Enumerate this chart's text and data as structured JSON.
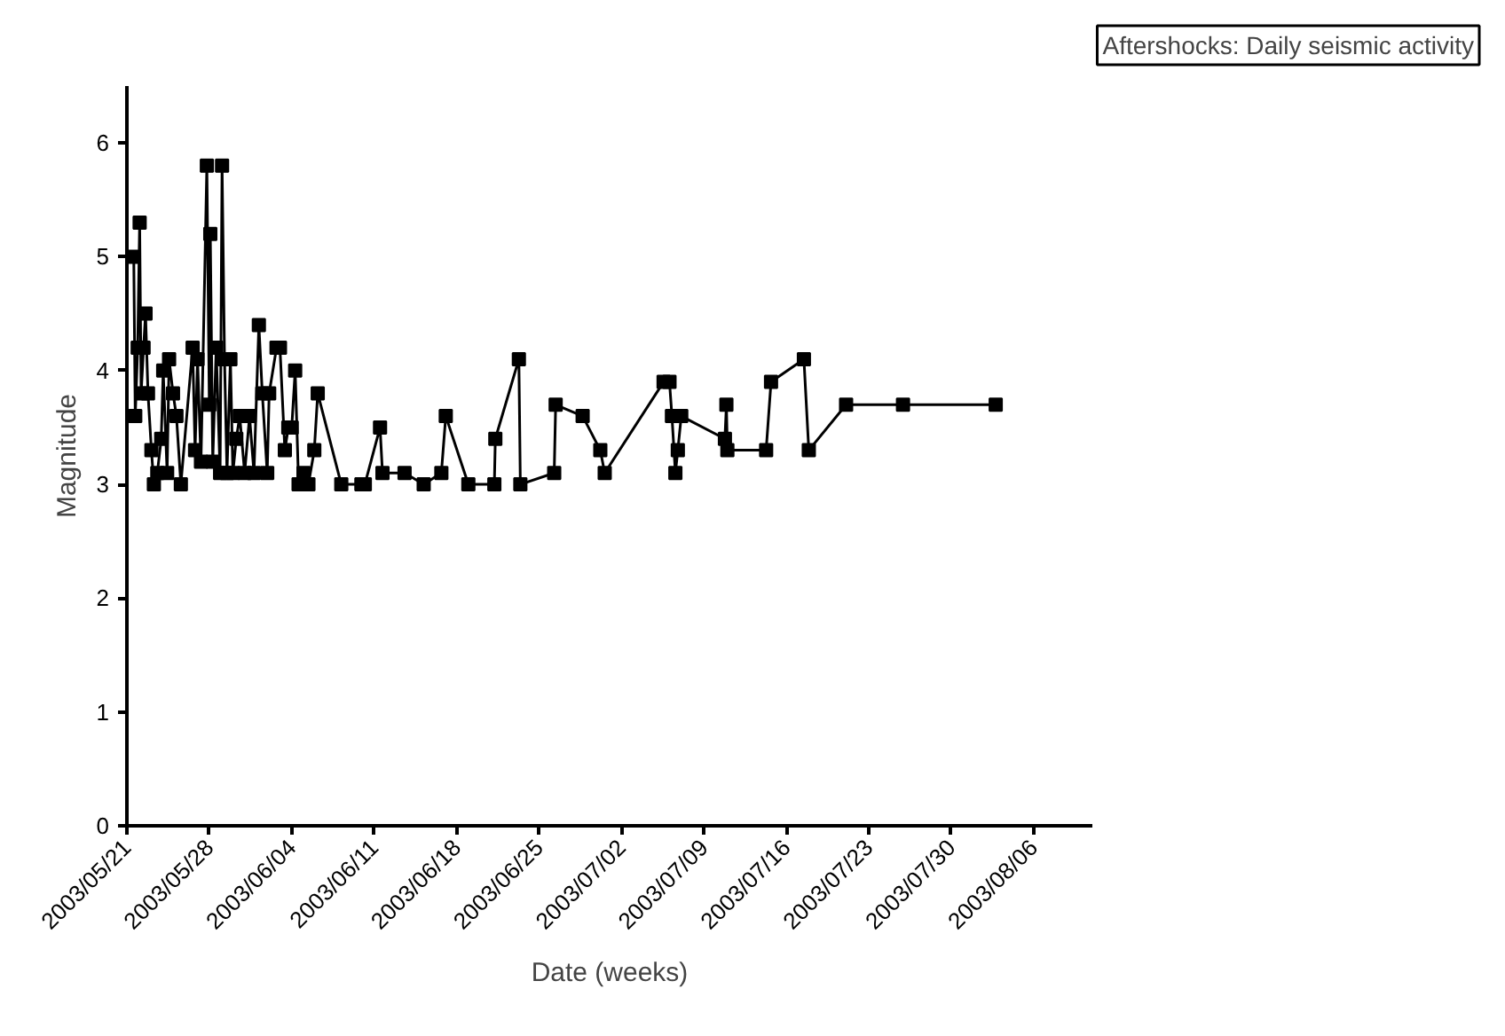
{
  "chart_data": {
    "type": "line",
    "title": "Aftershocks: Daily seismic activity",
    "xlabel": "Date (weeks)",
    "ylabel": "Magnitude",
    "x": [
      "2003-05-21T14:00",
      "2003-05-21T17:00",
      "2003-05-21T22:00",
      "2003-05-22T02:00",
      "2003-05-22T05:00",
      "2003-05-22T10:00",
      "2003-05-22T14:00",
      "2003-05-22T19:00",
      "2003-05-23T02:00",
      "2003-05-23T07:00",
      "2003-05-23T14:00",
      "2003-05-23T22:00",
      "2003-05-24T02:00",
      "2003-05-24T10:00",
      "2003-05-24T14:00",
      "2003-05-24T22:00",
      "2003-05-25T05:00",
      "2003-05-25T14:00",
      "2003-05-26T14:00",
      "2003-05-26T19:00",
      "2003-05-27T00:00",
      "2003-05-27T07:00",
      "2003-05-27T19:00",
      "2003-05-28T00:00",
      "2003-05-28T02:00",
      "2003-05-28T07:00",
      "2003-05-28T14:00",
      "2003-05-28T22:00",
      "2003-05-29T02:00",
      "2003-05-29T07:00",
      "2003-05-29T12:00",
      "2003-05-29T19:00",
      "2003-05-30T00:00",
      "2003-05-30T07:00",
      "2003-05-30T14:00",
      "2003-05-31T00:00",
      "2003-05-31T10:00",
      "2003-05-31T19:00",
      "2003-06-01T05:00",
      "2003-06-01T12:00",
      "2003-06-01T22:00",
      "2003-06-02T02:00",
      "2003-06-02T17:00",
      "2003-06-03T00:00",
      "2003-06-03T10:00",
      "2003-06-03T17:00",
      "2003-06-04T00:00",
      "2003-06-04T07:00",
      "2003-06-04T14:00",
      "2003-06-05T00:00",
      "2003-06-05T10:00",
      "2003-06-05T22:00",
      "2003-06-06T05:00",
      "2003-06-08T05:00",
      "2003-06-09T22:00",
      "2003-06-10T05:00",
      "2003-06-11T12:00",
      "2003-06-11T17:00",
      "2003-06-13T14:00",
      "2003-06-15T05:00",
      "2003-06-16T17:00",
      "2003-06-17T02:00",
      "2003-06-19T00:00",
      "2003-06-21T05:00",
      "2003-06-21T07:00",
      "2003-06-23T07:00",
      "2003-06-23T10:00",
      "2003-06-26T07:00",
      "2003-06-26T10:00",
      "2003-06-28T17:00",
      "2003-06-30T05:00",
      "2003-06-30T14:00",
      "2003-07-05T14:00",
      "2003-07-06T02:00",
      "2003-07-06T07:00",
      "2003-07-06T14:00",
      "2003-07-06T19:00",
      "2003-07-07T02:00",
      "2003-07-10T19:00",
      "2003-07-10T22:00",
      "2003-07-11T00:00",
      "2003-07-14T07:00",
      "2003-07-14T17:00",
      "2003-07-17T12:00",
      "2003-07-17T22:00",
      "2003-07-21T02:00",
      "2003-07-25T22:00",
      "2003-08-02T19:00"
    ],
    "series": [
      {
        "color": "#000000",
        "values": [
          5.0,
          3.6,
          4.2,
          5.3,
          3.8,
          4.2,
          4.5,
          3.8,
          3.3,
          3.0,
          3.1,
          3.4,
          4.0,
          3.1,
          4.1,
          3.8,
          3.6,
          3.0,
          4.2,
          3.3,
          4.1,
          3.2,
          5.8,
          3.7,
          5.2,
          3.2,
          4.2,
          3.1,
          5.8,
          4.1,
          3.1,
          4.1,
          3.1,
          3.4,
          3.6,
          3.1,
          3.6,
          3.1,
          4.4,
          3.8,
          3.1,
          3.8,
          4.2,
          4.2,
          3.3,
          3.5,
          3.5,
          4.0,
          3.0,
          3.1,
          3.0,
          3.3,
          3.8,
          3.0,
          3.0,
          3.0,
          3.5,
          3.1,
          3.1,
          3.0,
          3.1,
          3.6,
          3.0,
          3.0,
          3.4,
          4.1,
          3.0,
          3.1,
          3.7,
          3.6,
          3.3,
          3.1,
          3.9,
          3.9,
          3.6,
          3.1,
          3.3,
          3.6,
          3.4,
          3.7,
          3.3,
          3.3,
          3.9,
          4.1,
          3.3,
          3.7,
          3.7,
          3.7
        ]
      }
    ],
    "xlim": [
      "2003-05-21",
      "2003-08-11"
    ],
    "xticks": [
      {
        "value": "2003-05-21",
        "label": "2003/05/21"
      },
      {
        "value": "2003-05-28",
        "label": "2003/05/28"
      },
      {
        "value": "2003-06-04",
        "label": "2003/06/04"
      },
      {
        "value": "2003-06-11",
        "label": "2003/06/11"
      },
      {
        "value": "2003-06-18",
        "label": "2003/06/18"
      },
      {
        "value": "2003-06-25",
        "label": "2003/06/25"
      },
      {
        "value": "2003-07-02",
        "label": "2003/07/02"
      },
      {
        "value": "2003-07-09",
        "label": "2003/07/09"
      },
      {
        "value": "2003-07-16",
        "label": "2003/07/16"
      },
      {
        "value": "2003-07-23",
        "label": "2003/07/23"
      },
      {
        "value": "2003-07-30",
        "label": "2003/07/30"
      },
      {
        "value": "2003-08-06",
        "label": "2003/08/06"
      }
    ],
    "ylim": [
      0,
      6.5
    ],
    "yticks": [
      0,
      1,
      2,
      3,
      4,
      5,
      6
    ],
    "marker": "square",
    "line_style": "solid",
    "grid": false
  }
}
